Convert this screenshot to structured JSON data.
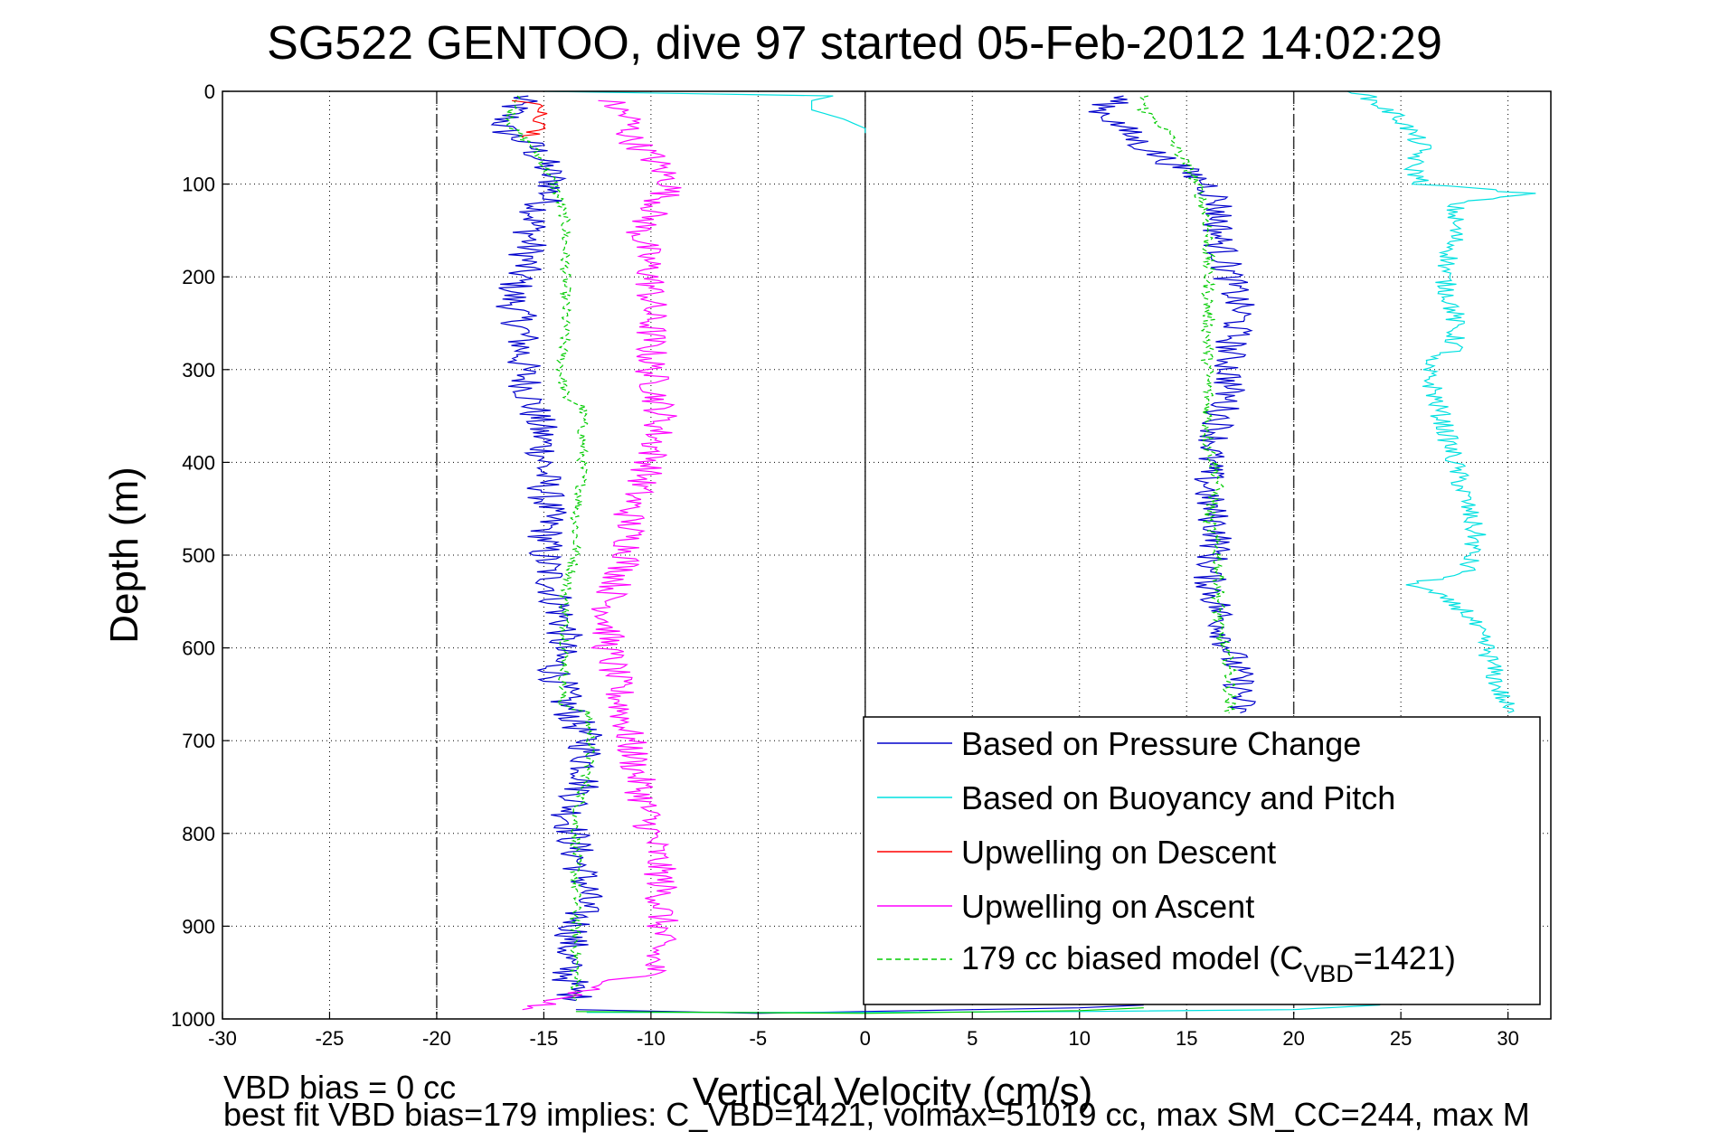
{
  "chart_data": {
    "type": "line",
    "title": "SG522 GENTOO, dive 97 started 05-Feb-2012 14:02:29",
    "xlabel": "Vertical Velocity (cm/s)",
    "ylabel": "Depth (m)",
    "xlim": [
      -30,
      32
    ],
    "ylim": [
      0,
      1000
    ],
    "y_reversed": true,
    "grid": true,
    "x_ticks": [
      "-30",
      "-25",
      "-20",
      "-15",
      "-10",
      "-5",
      "0",
      "5",
      "10",
      "15",
      "20",
      "25",
      "30"
    ],
    "y_ticks": [
      "0",
      "100",
      "200",
      "300",
      "400",
      "500",
      "600",
      "700",
      "800",
      "900",
      "1000"
    ],
    "reference_lines_x": [
      -20,
      20,
      0
    ],
    "legend_position": "bottom-right",
    "legend": [
      {
        "label": "Based on Pressure Change",
        "color": "#0000cc",
        "dash": false
      },
      {
        "label": "Based on Buoyancy and Pitch",
        "color": "#00e0e0",
        "dash": false
      },
      {
        "label": "Upwelling on Descent",
        "color": "#ff0000",
        "dash": false
      },
      {
        "label": "Upwelling on Ascent",
        "color": "#ff00ff",
        "dash": false
      },
      {
        "label_main": "179 cc biased model (C",
        "label_sub": "VBD",
        "label_end": "=1421)",
        "color": "#00cc00",
        "dash": true
      }
    ],
    "footer_line1": "VBD bias = 0 cc",
    "footer_line2": "best fit VBD bias=179 implies: C_VBD=1421, volmax=51019 cc, max SM_CC=244, max M",
    "series": [
      {
        "name": "Based on Pressure Change (descent)",
        "color": "#0000cc",
        "depth": [
          5,
          20,
          40,
          60,
          80,
          100,
          140,
          180,
          220,
          260,
          300,
          340,
          380,
          420,
          460,
          500,
          540,
          580,
          620,
          660,
          700,
          740,
          780,
          820,
          860,
          900,
          940,
          980
        ],
        "velocity": [
          -16,
          -16.5,
          -17,
          -15.5,
          -15,
          -14.5,
          -15.5,
          -15.8,
          -16.5,
          -16,
          -16,
          -15.5,
          -15,
          -15,
          -14.8,
          -15,
          -14.5,
          -14,
          -14.5,
          -14,
          -13,
          -13,
          -13.8,
          -13.5,
          -13,
          -13.5,
          -14,
          -13.5
        ],
        "jitter": 0.9
      },
      {
        "name": "179 cc biased model (descent)",
        "color": "#00cc00",
        "dash": true,
        "depth": [
          5,
          20,
          40,
          60,
          80,
          100,
          140,
          180,
          220,
          260,
          300,
          330,
          340,
          380,
          420,
          460,
          500,
          540,
          580,
          620,
          660,
          670,
          700,
          740,
          780,
          820,
          860,
          900,
          940,
          980
        ],
        "velocity": [
          -16,
          -16.5,
          -16.5,
          -15.5,
          -15,
          -14.5,
          -14,
          -14,
          -14,
          -14,
          -14.2,
          -14,
          -13.2,
          -13.2,
          -13.2,
          -13.5,
          -13.5,
          -14,
          -14,
          -14,
          -14.2,
          -13,
          -12.8,
          -13,
          -13.5,
          -13.5,
          -13.5,
          -13.5,
          -13.5,
          -13.5
        ],
        "jitter": 0.25
      },
      {
        "name": "Upwelling on Descent",
        "color": "#ff0000",
        "depth": [
          10,
          20,
          30,
          40,
          50
        ],
        "velocity": [
          -16,
          -15,
          -15.5,
          -15,
          -16
        ],
        "jitter": 0.5
      },
      {
        "name": "Upwelling on Ascent",
        "color": "#ff00ff",
        "depth": [
          10,
          30,
          50,
          70,
          100,
          150,
          200,
          250,
          300,
          350,
          400,
          450,
          500,
          550,
          600,
          650,
          700,
          750,
          800,
          850,
          900,
          950,
          990
        ],
        "velocity": [
          -12,
          -11,
          -11,
          -10,
          -9,
          -10.5,
          -10,
          -10,
          -10,
          -9.5,
          -10,
          -11,
          -11,
          -12,
          -12,
          -11.5,
          -11,
          -10.5,
          -10,
          -9.5,
          -9.5,
          -10,
          -16
        ],
        "jitter": 0.8
      },
      {
        "name": "Based on Pressure Change (ascent)",
        "color": "#0000cc",
        "depth": [
          5,
          20,
          40,
          60,
          80,
          100,
          120,
          160,
          200,
          240,
          280,
          320,
          360,
          400,
          440,
          480,
          520,
          560,
          600,
          640,
          670
        ],
        "velocity": [
          12,
          11,
          12,
          13,
          14.5,
          16,
          16.5,
          16.5,
          17,
          17.5,
          17,
          17,
          16.5,
          16,
          16,
          16.5,
          16,
          16.5,
          17,
          17.5,
          17.5
        ],
        "jitter": 0.8
      },
      {
        "name": "179 cc biased model (ascent)",
        "color": "#00cc00",
        "dash": true,
        "depth": [
          5,
          20,
          40,
          60,
          80,
          100,
          140,
          180,
          220,
          260,
          300,
          340,
          380,
          420,
          460,
          500,
          540,
          580,
          620,
          660,
          670
        ],
        "velocity": [
          13,
          13,
          14,
          14.5,
          15,
          15.5,
          16,
          16,
          16,
          16,
          16,
          16,
          16,
          16.5,
          16,
          16.5,
          16.5,
          16.5,
          17,
          17,
          17
        ],
        "jitter": 0.3
      },
      {
        "name": "Based on Buoyancy and Pitch (ascent)",
        "color": "#00e0e0",
        "depth": [
          0,
          30,
          60,
          80,
          100,
          110,
          120,
          160,
          200,
          240,
          280,
          290,
          320,
          360,
          400,
          440,
          480,
          520,
          530,
          560,
          600,
          640,
          670
        ],
        "velocity": [
          23,
          25,
          26,
          25.5,
          26,
          31,
          27.5,
          27.5,
          27,
          27.5,
          27.5,
          26,
          26.5,
          27,
          27.5,
          28,
          28.5,
          28,
          25.5,
          28,
          29,
          29.5,
          30
        ],
        "jitter": 0.5
      },
      {
        "name": "Based on Buoyancy and Pitch (descent)",
        "color": "#00e0e0",
        "depth": [
          0,
          5,
          10,
          20,
          30,
          40,
          45
        ],
        "velocity": [
          -15,
          -1.5,
          -2.5,
          -2.5,
          -1,
          0,
          0
        ],
        "jitter": 0
      }
    ]
  }
}
